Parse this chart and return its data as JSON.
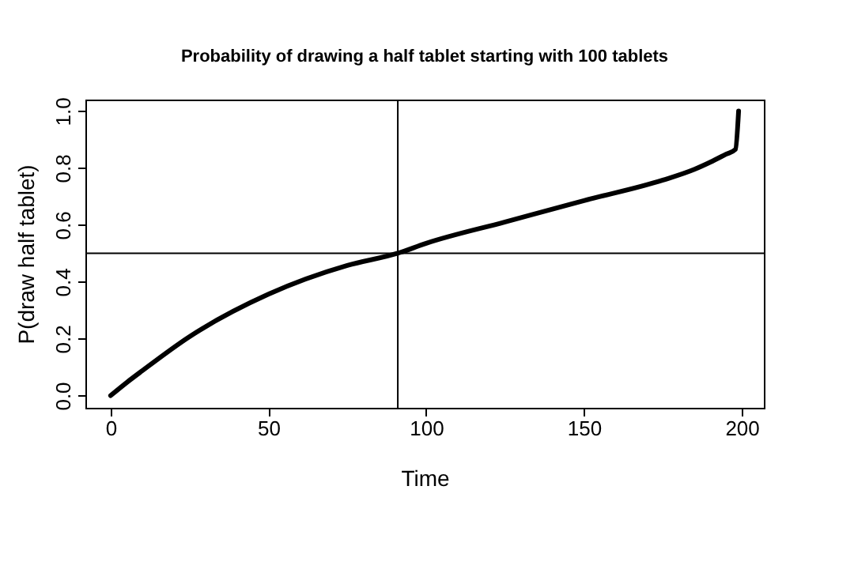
{
  "chart_data": {
    "type": "line",
    "title": "Probability of drawing a half tablet starting with 100 tablets",
    "xlabel": "Time",
    "ylabel": "P(draw half tablet)",
    "x": [
      0,
      5,
      10,
      25,
      50,
      75,
      91,
      100,
      125,
      150,
      175,
      185,
      190,
      195,
      198,
      199
    ],
    "series": [
      {
        "color": "#000000",
        "values": [
          0,
          0.045,
          0.087,
          0.207,
          0.356,
          0.457,
          0.5,
          0.535,
          0.61,
          0.685,
          0.757,
          0.795,
          0.82,
          0.848,
          0.865,
          1.0
        ]
      }
    ],
    "xlim": [
      -8,
      207
    ],
    "ylim": [
      -0.043,
      1.04
    ],
    "xticks": [
      0,
      50,
      100,
      150,
      200
    ],
    "yticks": [
      {
        "value": 0,
        "label": "0.0"
      },
      {
        "value": 0.2,
        "label": "0.2"
      },
      {
        "value": 0.4,
        "label": "0.4"
      },
      {
        "value": 0.6,
        "label": "0.6"
      },
      {
        "value": 0.8,
        "label": "0.8"
      },
      {
        "value": 1.0,
        "label": "1.0"
      }
    ],
    "ref_lines": [
      {
        "axis": "x",
        "value": 91,
        "color": "#000000"
      },
      {
        "axis": "y",
        "value": 0.5,
        "color": "#000000"
      }
    ],
    "grid": false,
    "marker": "none",
    "line_style": "solid"
  }
}
